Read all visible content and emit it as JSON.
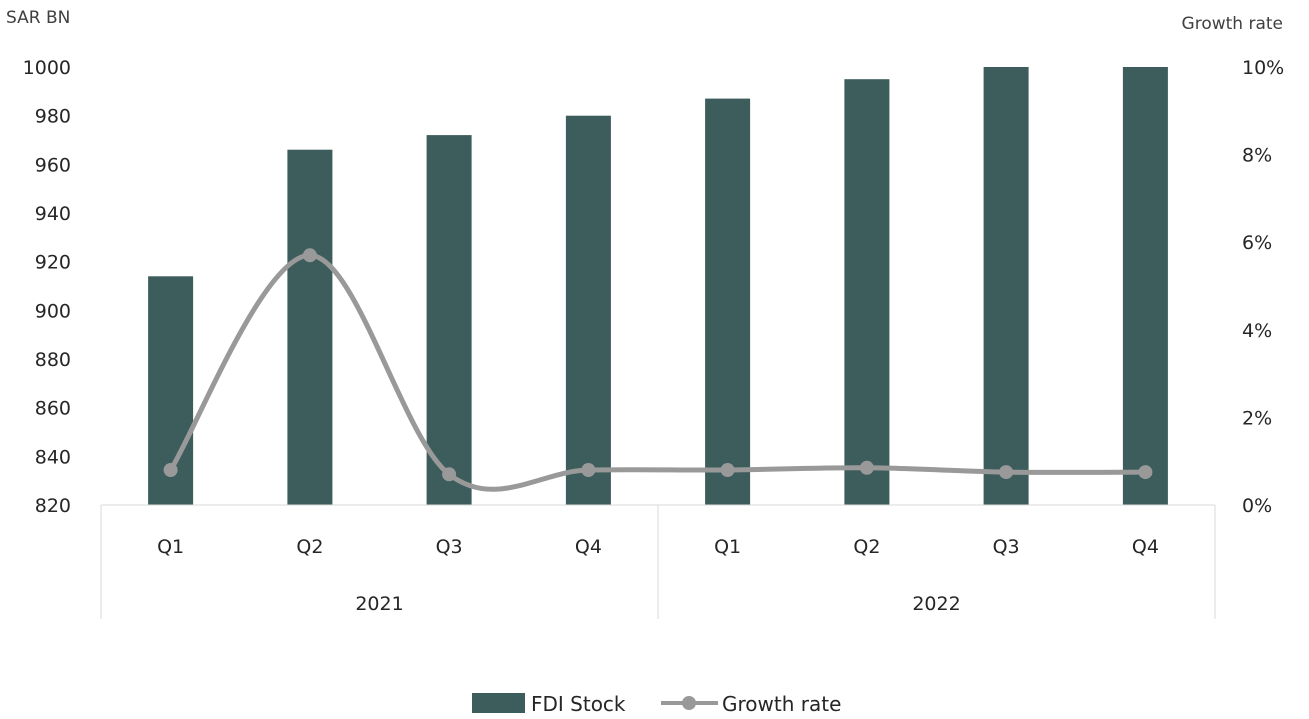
{
  "chart_data": {
    "type": "bar",
    "categories": [
      "Q1",
      "Q2",
      "Q3",
      "Q4",
      "Q1",
      "Q2",
      "Q3",
      "Q4"
    ],
    "groups": [
      {
        "label": "2021",
        "span": 4
      },
      {
        "label": "2022",
        "span": 4
      }
    ],
    "series": [
      {
        "name": "FDI Stock",
        "type": "bar",
        "axis": "left",
        "color": "#3d5c5c",
        "values": [
          914,
          966,
          972,
          980,
          987,
          995,
          1001,
          1001
        ]
      },
      {
        "name": "Growth rate",
        "type": "line",
        "smooth": true,
        "markers": true,
        "axis": "right",
        "color": "#999999",
        "values": [
          0.8,
          5.7,
          0.7,
          0.8,
          0.8,
          0.85,
          0.75,
          0.75
        ]
      }
    ],
    "y_left": {
      "label": "SAR BN",
      "min": 820,
      "max": 1000,
      "ticks": [
        "1000",
        "980",
        "960",
        "940",
        "920",
        "900",
        "880",
        "860",
        "840",
        "820"
      ]
    },
    "y_right": {
      "label": "Growth rate",
      "min": 0,
      "max": 10,
      "ticks": [
        "10%",
        "8%",
        "6%",
        "4%",
        "2%",
        "0%"
      ]
    },
    "grid": false,
    "legend": "bottom-center"
  }
}
